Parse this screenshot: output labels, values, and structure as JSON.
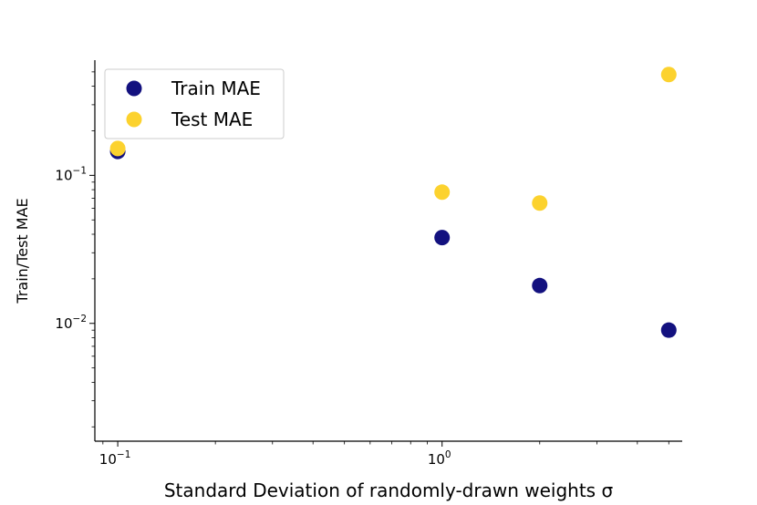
{
  "chart_data": {
    "type": "scatter",
    "xlabel": "Standard Deviation of randomly-drawn weights σ",
    "ylabel": "Train/Test MAE",
    "xscale": "log",
    "yscale": "log",
    "xlim": [
      0.085,
      5.5
    ],
    "ylim": [
      0.0016,
      0.6
    ],
    "x_ticks": [
      {
        "value": 0.1,
        "base": "10",
        "exp": "−1"
      },
      {
        "value": 1,
        "base": "10",
        "exp": "0"
      }
    ],
    "y_ticks": [
      {
        "value": 0.1,
        "base": "10",
        "exp": "−1"
      },
      {
        "value": 0.01,
        "base": "10",
        "exp": "−2"
      }
    ],
    "grid": false,
    "legend_position": "top-left",
    "series": [
      {
        "name": "Train MAE",
        "color": "#13117f",
        "x": [
          0.1,
          1,
          2,
          5
        ],
        "y": [
          0.145,
          0.038,
          0.018,
          0.009
        ]
      },
      {
        "name": "Test MAE",
        "color": "#fcd22e",
        "x": [
          0.1,
          1,
          2,
          5
        ],
        "y": [
          0.152,
          0.077,
          0.065,
          0.48
        ]
      }
    ]
  }
}
